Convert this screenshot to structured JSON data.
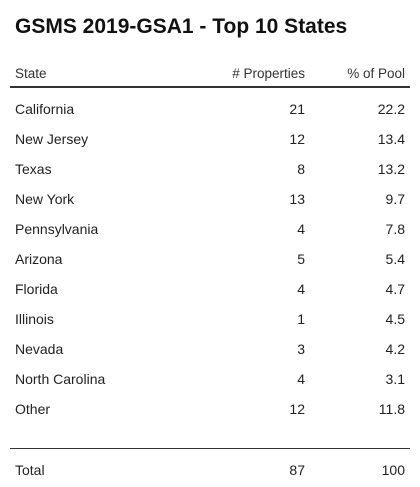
{
  "chart_data": {
    "type": "table",
    "title": "GSMS 2019-GSA1 - Top 10 States",
    "columns": [
      "State",
      "# Properties",
      "% of Pool"
    ],
    "rows": [
      {
        "state": "California",
        "properties": "21",
        "pool": "22.2"
      },
      {
        "state": "New Jersey",
        "properties": "12",
        "pool": "13.4"
      },
      {
        "state": "Texas",
        "properties": "8",
        "pool": "13.2"
      },
      {
        "state": "New York",
        "properties": "13",
        "pool": "9.7"
      },
      {
        "state": "Pennsylvania",
        "properties": "4",
        "pool": "7.8"
      },
      {
        "state": "Arizona",
        "properties": "5",
        "pool": "5.4"
      },
      {
        "state": "Florida",
        "properties": "4",
        "pool": "4.7"
      },
      {
        "state": "Illinois",
        "properties": "1",
        "pool": "4.5"
      },
      {
        "state": "Nevada",
        "properties": "3",
        "pool": "4.2"
      },
      {
        "state": "North Carolina",
        "properties": "4",
        "pool": "3.1"
      },
      {
        "state": "Other",
        "properties": "12",
        "pool": "11.8"
      }
    ],
    "total": {
      "label": "Total",
      "properties": "87",
      "pool": "100"
    }
  }
}
